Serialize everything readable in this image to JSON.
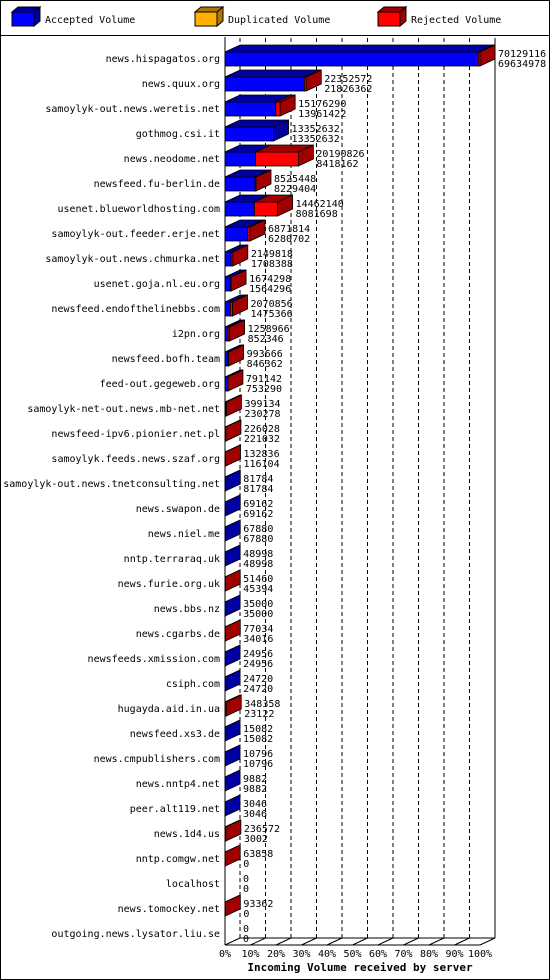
{
  "chart_data": {
    "type": "bar3d",
    "xlabel": "Incoming Volume received by server",
    "categories": [
      "news.hispagatos.org",
      "news.quux.org",
      "samoylyk-out.news.weretis.net",
      "gothmog.csi.it",
      "news.neodome.net",
      "newsfeed.fu-berlin.de",
      "usenet.blueworldhosting.com",
      "samoylyk-out.feeder.erje.net",
      "samoylyk-out.news.chmurka.net",
      "usenet.goja.nl.eu.org",
      "newsfeed.endofthelinebbs.com",
      "i2pn.org",
      "newsfeed.bofh.team",
      "feed-out.gegeweb.org",
      "samoylyk-net-out.news.mb-net.net",
      "newsfeed-ipv6.pionier.net.pl",
      "samoylyk.feeds.news.szaf.org",
      "samoylyk-out.news.tnetconsulting.net",
      "news.swapon.de",
      "news.niel.me",
      "nntp.terraraq.uk",
      "news.furie.org.uk",
      "news.bbs.nz",
      "news.cgarbs.de",
      "newsfeeds.xmission.com",
      "csiph.com",
      "hugayda.aid.in.ua",
      "newsfeed.xs3.de",
      "news.cmpublishers.com",
      "news.nntp4.net",
      "peer.alt119.net",
      "news.1d4.us",
      "nntp.comgw.net",
      "localhost",
      "news.tomockey.net",
      "outgoing.news.lysator.liu.se"
    ],
    "totals": [
      70129116,
      22352572,
      15176290,
      13352632,
      20190826,
      8525448,
      14462140,
      6871814,
      2149818,
      1674298,
      2070856,
      1258966,
      993666,
      791142,
      399134,
      226028,
      132836,
      81784,
      69162,
      67880,
      48998,
      51460,
      35000,
      77034,
      24956,
      24720,
      348358,
      15082,
      10796,
      9882,
      3046,
      236572,
      63858,
      0,
      93362,
      0
    ],
    "series": [
      {
        "name": "Accepted Volume",
        "color": "#0000ff",
        "side": "#0000a0",
        "values": [
          69634978,
          21826362,
          13961422,
          13352632,
          8418162,
          8229404,
          8081698,
          6280702,
          1708388,
          1564296,
          1475366,
          852346,
          846362,
          753290,
          230278,
          221032,
          116104,
          81784,
          69162,
          67880,
          48998,
          45394,
          35000,
          34016,
          24956,
          24720,
          23122,
          15082,
          10796,
          9882,
          3046,
          3002,
          0,
          0,
          0,
          0
        ]
      },
      {
        "name": "Duplicated Volume",
        "color": "#ffb000",
        "side": "#b07800",
        "values": [
          0,
          0,
          0,
          0,
          0,
          0,
          0,
          0,
          0,
          0,
          0,
          0,
          0,
          0,
          0,
          0,
          0,
          0,
          0,
          0,
          0,
          0,
          0,
          0,
          0,
          0,
          0,
          0,
          0,
          0,
          0,
          0,
          0,
          0,
          0,
          0
        ]
      },
      {
        "name": "Rejected Volume",
        "color": "#ff0000",
        "side": "#a00000",
        "values": [
          494138,
          526210,
          1214868,
          0,
          11772664,
          296044,
          6380442,
          591112,
          441430,
          110002,
          595490,
          406620,
          147304,
          37852,
          168856,
          4996,
          16732,
          0,
          0,
          0,
          0,
          6066,
          0,
          43018,
          0,
          0,
          325236,
          0,
          0,
          0,
          0,
          233570,
          63858,
          0,
          93362,
          0
        ]
      }
    ],
    "xlim": [
      0,
      100
    ],
    "xticks": [
      {
        "value": 0,
        "label": "0%"
      },
      {
        "value": 10,
        "label": "10%"
      },
      {
        "value": 20,
        "label": "20%"
      },
      {
        "value": 30,
        "label": "30%"
      },
      {
        "value": 40,
        "label": "40%"
      },
      {
        "value": 50,
        "label": "50%"
      },
      {
        "value": 60,
        "label": "60%"
      },
      {
        "value": 70,
        "label": "70%"
      },
      {
        "value": 80,
        "label": "80%"
      },
      {
        "value": 90,
        "label": "90%"
      },
      {
        "value": 100,
        "label": "100%"
      }
    ],
    "grid": true
  }
}
